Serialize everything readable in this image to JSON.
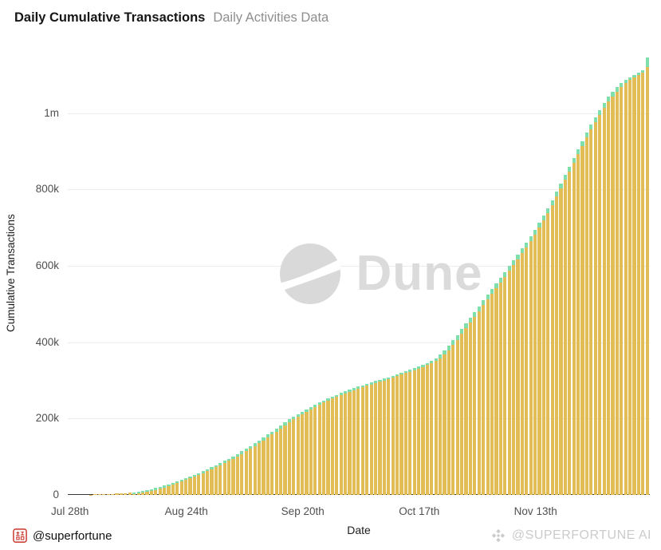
{
  "header": {
    "title": "Daily Cumulative Transactions",
    "subtitle": "Daily Activities Data"
  },
  "chart_data": {
    "type": "bar",
    "title": "Daily Cumulative Transactions",
    "xlabel": "Date",
    "ylabel": "Cumulative Transactions",
    "ylim": [
      0,
      1160000
    ],
    "grid": true,
    "legend": false,
    "bar_color": "#E2BC55",
    "tip_color": "#7FDFAC",
    "y_ticks": [
      {
        "value": 0,
        "label": "0"
      },
      {
        "value": 200000,
        "label": "200k"
      },
      {
        "value": 400000,
        "label": "400k"
      },
      {
        "value": 600000,
        "label": "600k"
      },
      {
        "value": 800000,
        "label": "800k"
      },
      {
        "value": 1000000,
        "label": "1m"
      }
    ],
    "x_ticks": [
      {
        "index": 0,
        "label": "Jul 28th"
      },
      {
        "index": 27,
        "label": "Aug 24th"
      },
      {
        "index": 54,
        "label": "Sep 20th"
      },
      {
        "index": 81,
        "label": "Oct 17th"
      },
      {
        "index": 108,
        "label": "Nov 13th"
      }
    ],
    "series": [
      {
        "name": "Cumulative Transactions",
        "values": [
          120,
          260,
          420,
          600,
          800,
          1020,
          1260,
          1540,
          1860,
          2240,
          2700,
          3260,
          3940,
          4760,
          5800,
          7100,
          8700,
          10600,
          12800,
          15200,
          17900,
          21000,
          24400,
          28000,
          31800,
          35800,
          39900,
          44000,
          48200,
          52600,
          57200,
          62000,
          67000,
          72200,
          77600,
          83200,
          89000,
          95000,
          101200,
          107600,
          114200,
          121000,
          128000,
          135200,
          142600,
          150200,
          158000,
          166000,
          174000,
          182000,
          190000,
          197600,
          204800,
          211600,
          218000,
          224200,
          230200,
          236000,
          241600,
          247000,
          252200,
          257200,
          262000,
          266600,
          271000,
          275400,
          279600,
          283600,
          287400,
          291000,
          294600,
          298000,
          301400,
          304600,
          307800,
          312000,
          316000,
          320000,
          324000,
          328000,
          332000,
          336000,
          340000,
          345000,
          351000,
          358000,
          367000,
          378000,
          391000,
          405000,
          419000,
          434000,
          449000,
          464000,
          479000,
          494000,
          509000,
          524000,
          539000,
          554000,
          569000,
          584000,
          599000,
          614000,
          629000,
          645000,
          661000,
          677000,
          694000,
          712000,
          731000,
          751000,
          772000,
          794000,
          816000,
          838000,
          860000,
          882000,
          904000,
          926000,
          948000,
          969000,
          989000,
          1008000,
          1026000,
          1042000,
          1056000,
          1068000,
          1078000,
          1086000,
          1093000,
          1099000,
          1105000,
          1111000,
          1145000
        ]
      }
    ]
  },
  "watermark": {
    "text": "Dune"
  },
  "footer": {
    "left_handle": "@superfortune",
    "right_handle": "@SUPERFORTUNE AI"
  },
  "colors": {
    "bar": "#E2BC55",
    "bar_tip": "#7FDFAC",
    "watermark": "#dbdbdb",
    "seal_red": "#C9342A",
    "footer_right_text": "#cbcbcb"
  }
}
